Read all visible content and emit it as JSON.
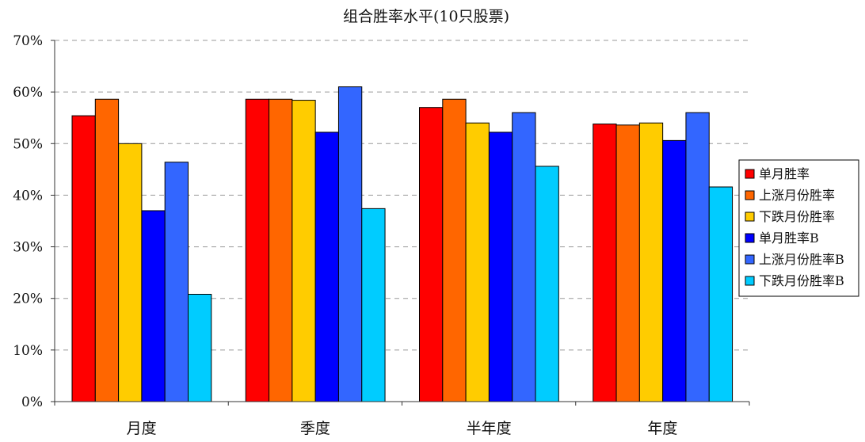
{
  "chart_data": {
    "type": "bar",
    "title": "组合胜率水平(10只股票)",
    "xlabel": "",
    "ylabel": "",
    "ylim": [
      0,
      70
    ],
    "yticks": [
      "0%",
      "10%",
      "20%",
      "30%",
      "40%",
      "50%",
      "60%",
      "70%"
    ],
    "categories": [
      "月度",
      "季度",
      "半年度",
      "年度"
    ],
    "grid": true,
    "legend_position": "right",
    "series": [
      {
        "name": "单月胜率",
        "color": "#ff0000",
        "values": [
          55.4,
          58.6,
          57.0,
          53.8
        ]
      },
      {
        "name": "上涨月份胜率",
        "color": "#ff6600",
        "values": [
          58.6,
          58.6,
          58.6,
          53.6
        ]
      },
      {
        "name": "下跌月份胜率",
        "color": "#ffcc00",
        "values": [
          50.0,
          58.4,
          54.0,
          54.0
        ]
      },
      {
        "name": "单月胜率B",
        "color": "#0000ff",
        "values": [
          37.0,
          52.2,
          52.2,
          50.6
        ]
      },
      {
        "name": "上涨月份胜率B",
        "color": "#3366ff",
        "values": [
          46.4,
          61.0,
          56.0,
          56.0
        ]
      },
      {
        "name": "下跌月份胜率B",
        "color": "#00ccff",
        "values": [
          20.8,
          37.4,
          45.6,
          41.6
        ]
      }
    ]
  }
}
